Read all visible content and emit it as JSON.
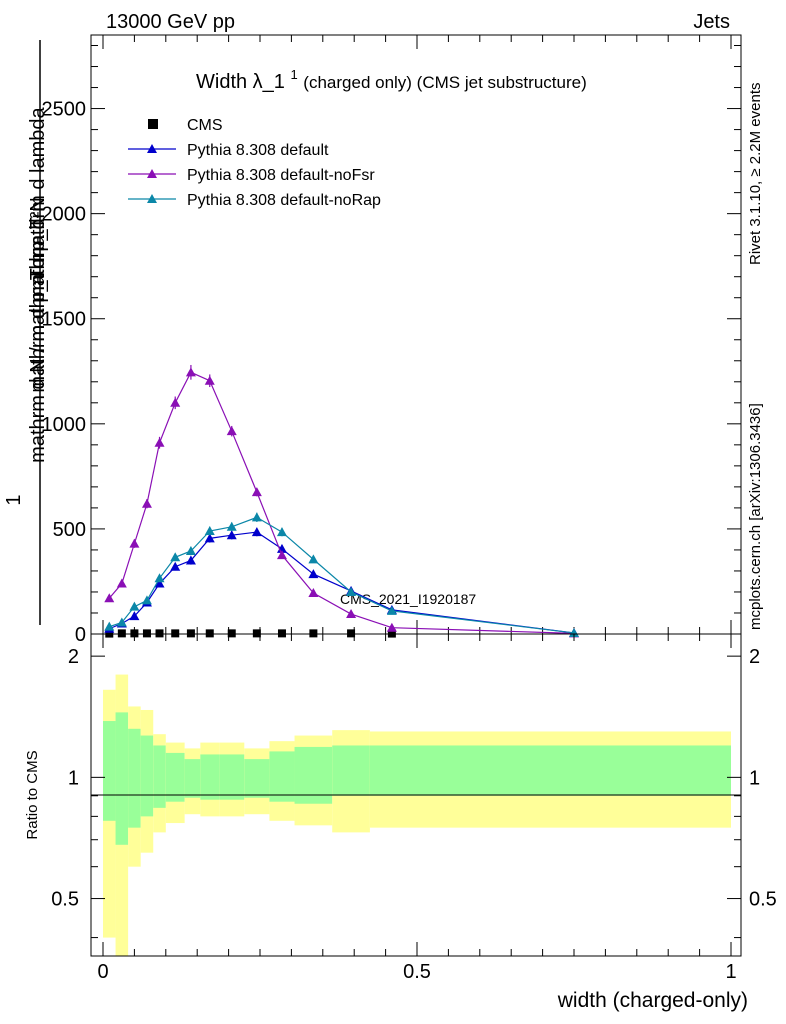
{
  "header": {
    "energy_label": "13000 GeV pp",
    "category_label": "Jets"
  },
  "side_labels": {
    "rivet": "Rivet 3.1.10, ≥ 2.2M events",
    "site": "mcplots.cern.ch [arXiv:1306.3436]"
  },
  "analysis_tag": "CMS_2021_I1920187",
  "main_plot": {
    "title_main": "Width λ_1",
    "title_sup": "1",
    "title_rest": " (charged only) (CMS jet substructure)",
    "ylabel_numerator": "mathrm d²N",
    "ylabel_numerator_sub": "mathrm d p_T mathrm d lambda",
    "ylabel_prefix": "1",
    "ylabel_denominator": "mathrm d N / mathrm d p_T"
  },
  "ratio_plot": {
    "ylabel": "Ratio to CMS",
    "xlabel": "width (charged-only)"
  },
  "colors": {
    "default": "#0000cc",
    "noFsr": "#8a0fb5",
    "noRap": "#0b87a8",
    "band_inner": "#99ff99",
    "band_outer": "#ffff99"
  },
  "chart_data": {
    "type": "line",
    "xlim": [
      -0.02,
      1.02
    ],
    "ylim": [
      0,
      2850
    ],
    "yticks_major": [
      0,
      500,
      1000,
      1500,
      2000,
      2500
    ],
    "yticks_labels": [
      "0",
      "500",
      "1000",
      "1500",
      "2000",
      "2500"
    ],
    "xticks_major": [
      0,
      0.5,
      1
    ],
    "xticks_labels": [
      "0",
      "0.5",
      "1"
    ],
    "legend_position": "top-left",
    "series": [
      {
        "name": "CMS",
        "marker": "square",
        "x": [
          0.01,
          0.03,
          0.05,
          0.07,
          0.09,
          0.115,
          0.14,
          0.17,
          0.205,
          0.245,
          0.285,
          0.335,
          0.395,
          0.46
        ],
        "y": [
          2,
          3,
          3,
          3,
          3,
          3,
          3,
          3,
          3,
          3,
          3,
          3,
          3,
          2
        ]
      },
      {
        "name": "Pythia 8.308 default",
        "marker": "triangle",
        "x": [
          0.01,
          0.03,
          0.05,
          0.07,
          0.09,
          0.115,
          0.14,
          0.17,
          0.205,
          0.245,
          0.285,
          0.335,
          0.395,
          0.46,
          0.75
        ],
        "y": [
          25,
          50,
          85,
          150,
          240,
          320,
          350,
          455,
          470,
          485,
          405,
          285,
          205,
          115,
          5
        ],
        "err": [
          8,
          8,
          10,
          12,
          15,
          18,
          20,
          20,
          20,
          20,
          18,
          12,
          10,
          8,
          3
        ]
      },
      {
        "name": "Pythia 8.308 default-noFsr",
        "marker": "triangle",
        "x": [
          0.01,
          0.03,
          0.05,
          0.07,
          0.09,
          0.115,
          0.14,
          0.17,
          0.205,
          0.245,
          0.285,
          0.335,
          0.395,
          0.46,
          0.75
        ],
        "y": [
          170,
          240,
          430,
          620,
          910,
          1100,
          1245,
          1205,
          965,
          675,
          375,
          195,
          95,
          30,
          3
        ],
        "err": [
          12,
          15,
          20,
          22,
          28,
          30,
          35,
          30,
          25,
          20,
          15,
          10,
          8,
          5,
          2
        ]
      },
      {
        "name": "Pythia 8.308 default-noRap",
        "marker": "triangle",
        "x": [
          0.01,
          0.03,
          0.05,
          0.07,
          0.09,
          0.115,
          0.14,
          0.17,
          0.205,
          0.245,
          0.285,
          0.335,
          0.395,
          0.46,
          0.75
        ],
        "y": [
          35,
          55,
          130,
          160,
          265,
          365,
          395,
          490,
          510,
          555,
          485,
          355,
          200,
          110,
          5
        ],
        "err": [
          8,
          8,
          10,
          12,
          15,
          18,
          20,
          20,
          20,
          22,
          20,
          15,
          10,
          8,
          3
        ]
      }
    ],
    "ratio": {
      "ylim": [
        0.36,
        2.27
      ],
      "log": true,
      "yticks_labels": [
        "0.5",
        "1",
        "2"
      ],
      "yticks_values": [
        0.5,
        1,
        2
      ],
      "reference": 1,
      "bins": [
        0,
        0.02,
        0.04,
        0.06,
        0.08,
        0.1,
        0.13,
        0.155,
        0.185,
        0.225,
        0.265,
        0.305,
        0.365,
        0.425,
        1.0
      ],
      "band_inner_hi": [
        1.38,
        1.45,
        1.32,
        1.27,
        1.2,
        1.15,
        1.11,
        1.14,
        1.14,
        1.11,
        1.16,
        1.19,
        1.2,
        1.2
      ],
      "band_inner_lo": [
        0.78,
        0.68,
        0.75,
        0.8,
        0.84,
        0.87,
        0.89,
        0.88,
        0.88,
        0.89,
        0.87,
        0.86,
        0.9,
        0.9
      ],
      "band_outer_hi": [
        1.65,
        1.8,
        1.5,
        1.47,
        1.28,
        1.22,
        1.18,
        1.22,
        1.22,
        1.18,
        1.23,
        1.27,
        1.31,
        1.3
      ],
      "band_outer_lo": [
        0.4,
        0.35,
        0.6,
        0.65,
        0.73,
        0.77,
        0.81,
        0.8,
        0.8,
        0.81,
        0.78,
        0.76,
        0.73,
        0.75
      ]
    }
  }
}
